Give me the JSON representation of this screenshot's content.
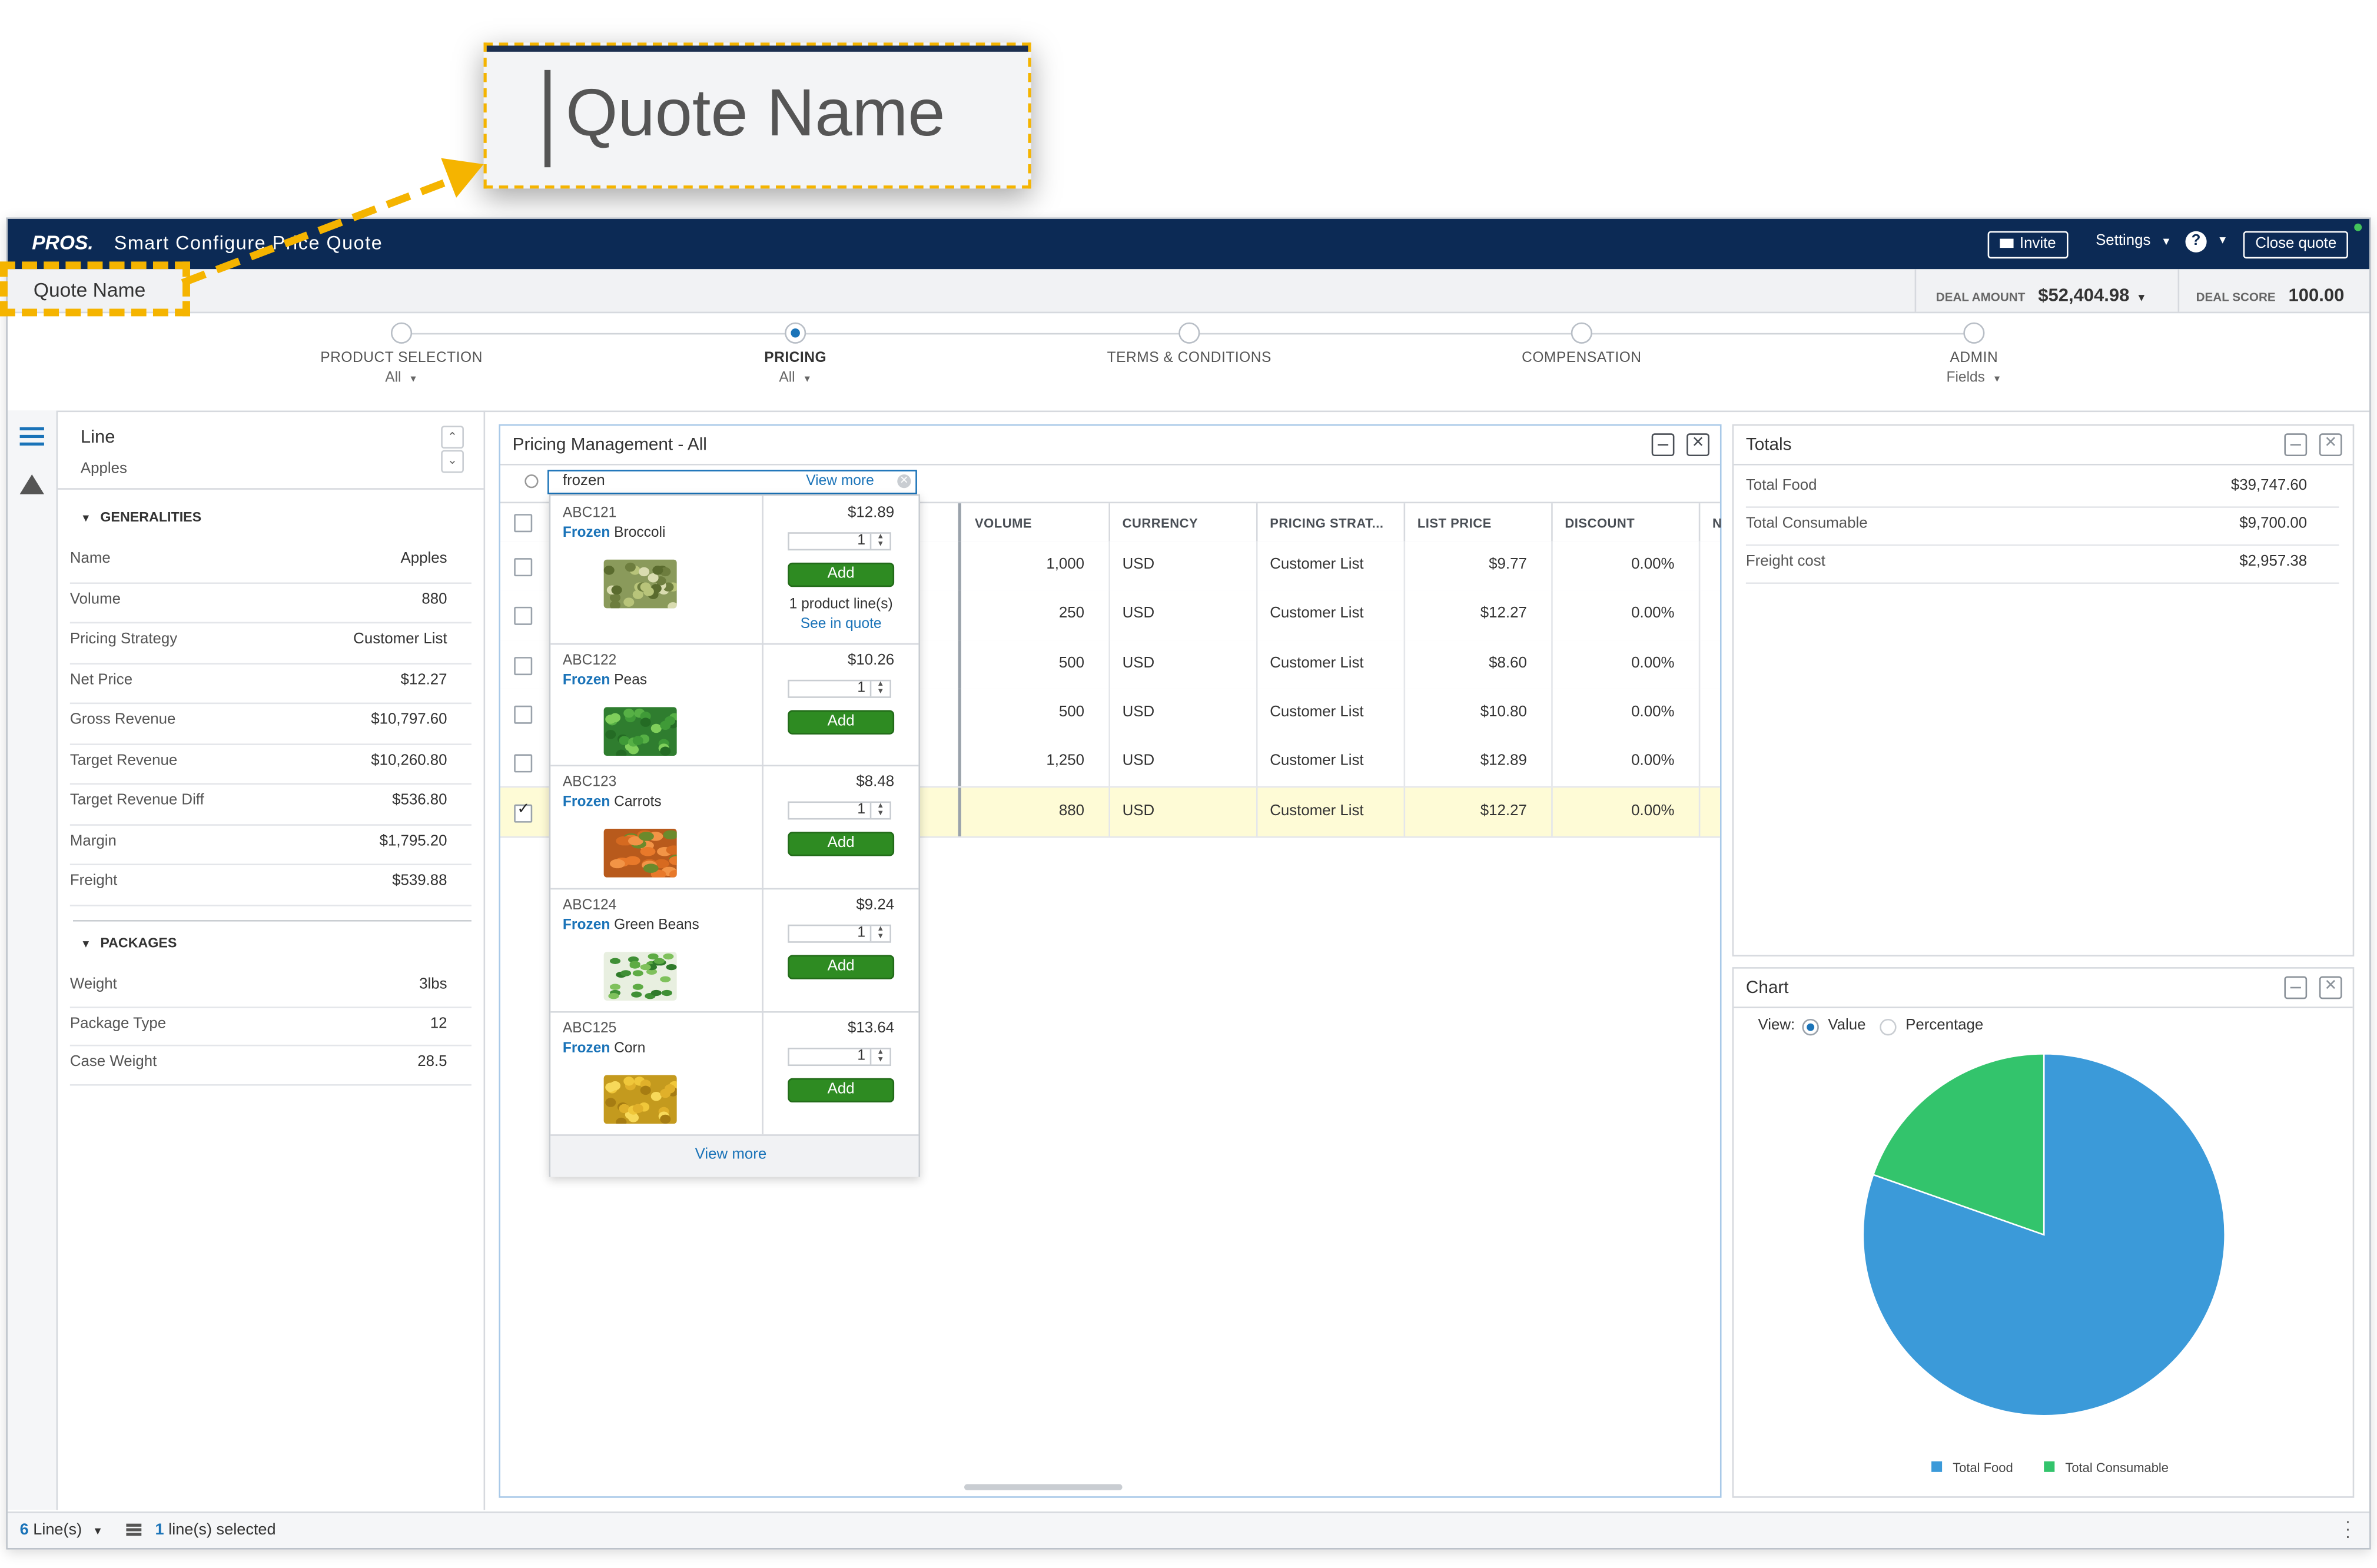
{
  "callout": {
    "text": "Quote Name"
  },
  "header": {
    "logo": "PROS.",
    "app_title": "Smart Configure Price Quote",
    "invite": "Invite",
    "settings": "Settings",
    "help": "?",
    "close_quote": "Close quote"
  },
  "quote_bar": {
    "quote_name": "Quote Name",
    "deal_amount_label": "DEAL AMOUNT",
    "deal_amount_value": "$52,404.98",
    "deal_score_label": "DEAL SCORE",
    "deal_score_value": "100.00"
  },
  "steps": [
    {
      "label": "PRODUCT SELECTION",
      "sub": "All",
      "active": false
    },
    {
      "label": "PRICING",
      "sub": "All",
      "active": true
    },
    {
      "label": "TERMS & CONDITIONS",
      "sub": "",
      "active": false
    },
    {
      "label": "COMPENSATION",
      "sub": "",
      "active": false
    },
    {
      "label": "ADMIN",
      "sub": "Fields",
      "active": false
    }
  ],
  "left_panel": {
    "title": "Line",
    "subtitle": "Apples",
    "generalities_title": "GENERALITIES",
    "generalities": [
      {
        "label": "Name",
        "value": "Apples"
      },
      {
        "label": "Volume",
        "value": "880"
      },
      {
        "label": "Pricing Strategy",
        "value": "Customer List"
      },
      {
        "label": "Net Price",
        "value": "$12.27"
      },
      {
        "label": "Gross Revenue",
        "value": "$10,797.60"
      },
      {
        "label": "Target Revenue",
        "value": "$10,260.80"
      },
      {
        "label": "Target Revenue Diff",
        "value": "$536.80"
      },
      {
        "label": "Margin",
        "value": "$1,795.20"
      },
      {
        "label": "Freight",
        "value": "$539.88"
      }
    ],
    "packages_title": "PACKAGES",
    "packages": [
      {
        "label": "Weight",
        "value": "3lbs"
      },
      {
        "label": "Package Type",
        "value": "12"
      },
      {
        "label": "Case Weight",
        "value": "28.5"
      }
    ]
  },
  "pricing": {
    "title": "Pricing Management - All",
    "search_value": "frozen",
    "view_more_top": "View more",
    "columns": [
      "VOLUME",
      "CURRENCY",
      "PRICING STRAT...",
      "LIST PRICE",
      "DISCOUNT",
      "N"
    ],
    "rows": [
      {
        "volume": "1,000",
        "currency": "USD",
        "strategy": "Customer List",
        "list_price": "$9.77",
        "discount": "0.00%",
        "checked": false
      },
      {
        "volume": "250",
        "currency": "USD",
        "strategy": "Customer List",
        "list_price": "$12.27",
        "discount": "0.00%",
        "checked": false
      },
      {
        "volume": "500",
        "currency": "USD",
        "strategy": "Customer List",
        "list_price": "$8.60",
        "discount": "0.00%",
        "checked": false
      },
      {
        "volume": "500",
        "currency": "USD",
        "strategy": "Customer List",
        "list_price": "$10.80",
        "discount": "0.00%",
        "checked": false
      },
      {
        "volume": "1,250",
        "currency": "USD",
        "strategy": "Customer List",
        "list_price": "$12.89",
        "discount": "0.00%",
        "checked": false
      },
      {
        "volume": "880",
        "currency": "USD",
        "strategy": "Customer List",
        "list_price": "$12.27",
        "discount": "0.00%",
        "checked": true
      }
    ],
    "search_results": [
      {
        "code": "ABC121",
        "keyword": "Frozen",
        "name": "Broccoli",
        "price": "$12.89",
        "qty": "1",
        "add": "Add",
        "note": "1 product line(s)",
        "note_link": "See in quote",
        "veg": "broccoli"
      },
      {
        "code": "ABC122",
        "keyword": "Frozen",
        "name": "Peas",
        "price": "$10.26",
        "qty": "1",
        "add": "Add",
        "veg": "peas"
      },
      {
        "code": "ABC123",
        "keyword": "Frozen",
        "name": "Carrots",
        "price": "$8.48",
        "qty": "1",
        "add": "Add",
        "veg": "carrots"
      },
      {
        "code": "ABC124",
        "keyword": "Frozen",
        "name": "Green Beans",
        "price": "$9.24",
        "qty": "1",
        "add": "Add",
        "veg": "beans"
      },
      {
        "code": "ABC125",
        "keyword": "Frozen",
        "name": "Corn",
        "price": "$13.64",
        "qty": "1",
        "add": "Add",
        "veg": "corn"
      }
    ],
    "view_more_bottom": "View more"
  },
  "totals": {
    "title": "Totals",
    "items": [
      {
        "label": "Total Food",
        "value": "$39,747.60"
      },
      {
        "label": "Total Consumable",
        "value": "$9,700.00"
      },
      {
        "label": "Freight cost",
        "value": "$2,957.38"
      }
    ]
  },
  "chart_panel": {
    "title": "Chart",
    "view_label": "View:",
    "option_value": "Value",
    "option_percentage": "Percentage",
    "selected": "Value"
  },
  "chart_data": {
    "type": "pie",
    "categories": [
      "Total Food",
      "Total Consumable"
    ],
    "values": [
      39747.6,
      9700.0
    ],
    "colors": [
      "#3b9ad9",
      "#33c46c"
    ],
    "legend": "bottom"
  },
  "footer": {
    "lines_count": "6",
    "lines_label": "Line(s)",
    "selected_count": "1",
    "selected_label": "line(s) selected"
  },
  "colors": {
    "header_bg": "#0c2a55",
    "accent_blue": "#1a73b8",
    "callout_yellow": "#f5b400",
    "add_green": "#2e8b22",
    "selected_row": "#fefbd6"
  }
}
